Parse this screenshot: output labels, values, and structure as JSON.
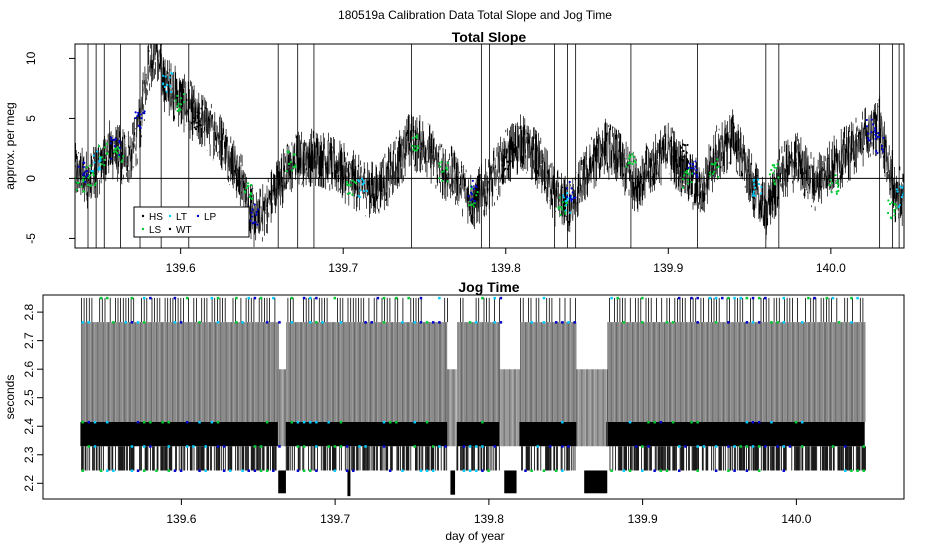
{
  "title": "180519a   Calibration Data Total Slope and Jog Time",
  "colors": {
    "background": "#ffffff",
    "HS": "#000000",
    "LS": "#00cc33",
    "LT": "#00ccff",
    "WT": "#000000",
    "LP": "#0000cc",
    "envelope": "#5a5a5a",
    "zero_line": "#000000"
  },
  "chart_data": [
    {
      "type": "line",
      "title": "Total Slope",
      "xlabel": "",
      "ylabel": "approx. per meg",
      "xlim": [
        139.535,
        140.045
      ],
      "ylim": [
        -5.8,
        11.2
      ],
      "xticks": [
        139.6,
        139.7,
        139.8,
        139.9,
        140.0
      ],
      "xtick_labels": [
        "139.6",
        "139.7",
        "139.8",
        "139.9",
        "140.0"
      ],
      "yticks": [
        -5,
        0,
        5,
        10
      ],
      "ytick_labels": [
        "-5",
        "0",
        "5",
        "10"
      ],
      "hline": 0,
      "grid": false,
      "legend": {
        "position": "bottom-left",
        "entries": [
          "HS",
          "LS",
          "LT",
          "WT",
          "LP"
        ]
      },
      "series": [
        {
          "name": "HS",
          "color": "#000000",
          "x": [
            139.535,
            139.545,
            139.555,
            139.565,
            139.57,
            139.575,
            139.58,
            139.585,
            139.59,
            139.6,
            139.61,
            139.62,
            139.63,
            139.64,
            139.645,
            139.65,
            139.66,
            139.67,
            139.68,
            139.69,
            139.7,
            139.71,
            139.72,
            139.73,
            139.74,
            139.75,
            139.76,
            139.77,
            139.78,
            139.79,
            139.8,
            139.81,
            139.82,
            139.83,
            139.84,
            139.85,
            139.86,
            139.87,
            139.88,
            139.89,
            139.9,
            139.91,
            139.92,
            139.93,
            139.94,
            139.95,
            139.96,
            139.97,
            139.98,
            139.99,
            140.0,
            140.01,
            140.02,
            140.03,
            140.04
          ],
          "y": [
            0.5,
            -0.2,
            2.5,
            1.8,
            2.0,
            4.5,
            9.5,
            10.8,
            8.0,
            6.5,
            5.2,
            4.0,
            2.0,
            -1.0,
            -3.5,
            -3.0,
            -0.5,
            1.5,
            1.8,
            1.5,
            0.5,
            -0.5,
            -1.0,
            0.5,
            3.0,
            2.8,
            0.8,
            0.0,
            -2.0,
            -0.5,
            1.8,
            3.0,
            1.5,
            -1.5,
            -2.5,
            0.5,
            2.8,
            1.5,
            -0.5,
            1.0,
            2.5,
            0.5,
            -1.0,
            2.0,
            3.5,
            0.0,
            -3.0,
            0.5,
            1.5,
            -0.5,
            1.0,
            2.0,
            3.5,
            4.5,
            -1.5
          ]
        },
        {
          "name": "LS",
          "color": "#00cc33",
          "x": [
            139.538,
            139.545,
            139.552,
            139.562,
            139.6,
            139.642,
            139.668,
            139.705,
            139.745,
            139.762,
            139.78,
            139.835,
            139.877,
            139.912,
            139.928,
            139.965,
            140.002,
            140.038
          ],
          "y": [
            -0.3,
            0.2,
            2.0,
            2.2,
            6.5,
            -1.2,
            1.5,
            -0.5,
            2.8,
            0.5,
            -1.5,
            -2.2,
            1.2,
            0.0,
            1.0,
            0.3,
            -0.5,
            -2.5
          ]
        },
        {
          "name": "LT",
          "color": "#00ccff",
          "x": [
            139.548,
            139.592,
            139.712,
            139.838,
            139.955,
            140.043
          ],
          "y": [
            1.5,
            8.0,
            -0.8,
            -2.0,
            -1.0,
            -1.5
          ]
        },
        {
          "name": "WT",
          "color": "#000000",
          "x": [
            139.61,
            139.8,
            139.91
          ],
          "y": [
            5.0,
            1.5,
            2.0
          ]
        },
        {
          "name": "LP",
          "color": "#0000cc",
          "x": [
            139.54,
            139.56,
            139.575,
            139.645,
            139.78,
            139.84,
            139.915,
            140.025,
            140.03
          ],
          "y": [
            0.5,
            2.5,
            5.0,
            -3.0,
            -1.0,
            -1.2,
            0.8,
            4.0,
            3.0
          ]
        }
      ]
    },
    {
      "type": "line",
      "title": "Jog Time",
      "xlabel": "day of year",
      "ylabel": "seconds",
      "xlim": [
        139.51,
        140.07
      ],
      "ylim": [
        2.145,
        2.86
      ],
      "xticks": [
        139.6,
        139.7,
        139.8,
        139.9,
        140.0
      ],
      "xtick_labels": [
        "139.6",
        "139.7",
        "139.8",
        "139.9",
        "140.0"
      ],
      "yticks": [
        2.2,
        2.3,
        2.4,
        2.5,
        2.6,
        2.7,
        2.8
      ],
      "ytick_labels": [
        "2.2",
        "2.3",
        "2.4",
        "2.5",
        "2.6",
        "2.7",
        "2.8"
      ],
      "grid": false,
      "levels": [
        2.245,
        2.33,
        2.415,
        2.765,
        2.85
      ],
      "series": [
        {
          "name": "jog_time",
          "color": "#000000",
          "x": [
            139.535,
            139.6,
            139.66,
            139.665,
            139.7,
            139.708,
            139.75,
            139.775,
            139.8,
            139.815,
            139.85,
            139.865,
            139.9,
            139.95,
            140.0,
            140.045
          ],
          "y": [
            2.33,
            2.415,
            2.245,
            2.165,
            2.415,
            2.155,
            2.415,
            2.165,
            2.33,
            2.165,
            2.415,
            2.165,
            2.415,
            2.33,
            2.415,
            2.245
          ]
        }
      ],
      "dips": [
        [
          139.663,
          139.668,
          2.165
        ],
        [
          139.708,
          139.709,
          2.155
        ],
        [
          139.775,
          139.778,
          2.16
        ],
        [
          139.81,
          139.818,
          2.165
        ],
        [
          139.862,
          139.877,
          2.165
        ]
      ],
      "gaps": [
        [
          139.663,
          139.668
        ],
        [
          139.773,
          139.779
        ],
        [
          139.807,
          139.82
        ],
        [
          139.857,
          139.877
        ]
      ]
    }
  ]
}
